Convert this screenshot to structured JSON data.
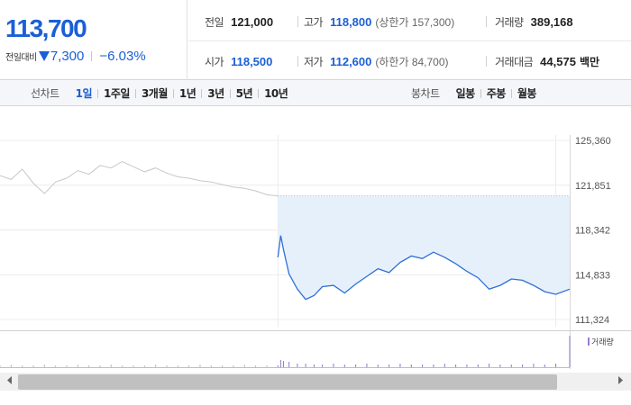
{
  "quote": {
    "current_price": "113,700",
    "change_label": "전일대비",
    "change_amount": "7,300",
    "change_percent": "−6.03%",
    "direction": "down",
    "color_down": "#1b5fd6"
  },
  "stats": {
    "prev_close": {
      "label": "전일",
      "value": "121,000"
    },
    "high": {
      "label": "고가",
      "value": "118,800",
      "note": "(상한가 157,300)"
    },
    "volume": {
      "label": "거래량",
      "value": "389,168"
    },
    "open": {
      "label": "시가",
      "value": "118,500"
    },
    "low": {
      "label": "저가",
      "value": "112,600",
      "note": "(하한가 84,700)"
    },
    "trade_value": {
      "label": "거래대금",
      "value": "44,575",
      "unit": "백만"
    }
  },
  "line_chart_tabs": {
    "title": "선차트",
    "items": [
      "1일",
      "1주일",
      "3개월",
      "1년",
      "3년",
      "5년",
      "10년"
    ],
    "active": "1일"
  },
  "candle_chart_tabs": {
    "title": "봉차트",
    "items": [
      "일봉",
      "주봉",
      "월봉"
    ]
  },
  "chart_data": {
    "type": "line",
    "y_ticks": [
      "125,360",
      "121,851",
      "118,342",
      "114,833",
      "111,324"
    ],
    "ylim": [
      111324,
      125360
    ],
    "reference_price": 121000,
    "series": [
      {
        "color": "#c8c8c8",
        "x": [
          0,
          4,
          8,
          12,
          16,
          20,
          24,
          28,
          32,
          36,
          40,
          44,
          48,
          52,
          56,
          60,
          64,
          68,
          72,
          76,
          80,
          84,
          88,
          92,
          96,
          100
        ],
        "values": [
          122600,
          122300,
          123100,
          122000,
          121200,
          122100,
          122400,
          123000,
          122700,
          123400,
          123200,
          123700,
          123300,
          122900,
          123200,
          122800,
          122500,
          122400,
          122200,
          122100,
          121900,
          121700,
          121600,
          121400,
          121100,
          121000
        ]
      },
      {
        "color": "#2f6fd6",
        "fill": "#e6f0fb",
        "x": [
          100,
          101,
          102,
          104,
          107,
          110,
          113,
          116,
          120,
          124,
          128,
          132,
          136,
          140,
          144,
          148,
          152,
          156,
          160,
          164,
          168,
          172,
          176,
          180,
          184,
          188,
          192,
          196,
          200,
          205
        ],
        "values": [
          116200,
          117900,
          116800,
          114900,
          113700,
          112900,
          113200,
          113900,
          114000,
          113400,
          114100,
          114700,
          115300,
          115000,
          115800,
          116300,
          116100,
          116600,
          116200,
          115700,
          115100,
          114600,
          113700,
          114000,
          114500,
          114400,
          114000,
          113500,
          113300,
          113700
        ]
      }
    ],
    "volume_legend": "거래량",
    "volume": {
      "x": [
        0,
        4,
        8,
        12,
        16,
        20,
        24,
        28,
        32,
        36,
        40,
        44,
        48,
        52,
        56,
        60,
        64,
        68,
        72,
        76,
        80,
        84,
        88,
        92,
        96,
        100,
        101,
        102,
        104,
        107,
        110,
        113,
        116,
        120,
        124,
        128,
        132,
        136,
        140,
        144,
        148,
        152,
        156,
        160,
        164,
        168,
        172,
        176,
        180,
        184,
        188,
        192,
        196,
        200,
        205
      ],
      "values": [
        2,
        3,
        2,
        2,
        3,
        2,
        2,
        3,
        2,
        2,
        3,
        2,
        2,
        2,
        3,
        2,
        2,
        2,
        3,
        2,
        2,
        2,
        3,
        2,
        2,
        2,
        8,
        7,
        6,
        4,
        4,
        3,
        3,
        4,
        3,
        3,
        4,
        3,
        3,
        4,
        3,
        3,
        3,
        4,
        3,
        3,
        3,
        4,
        3,
        3,
        3,
        4,
        3,
        4,
        35
      ]
    }
  }
}
